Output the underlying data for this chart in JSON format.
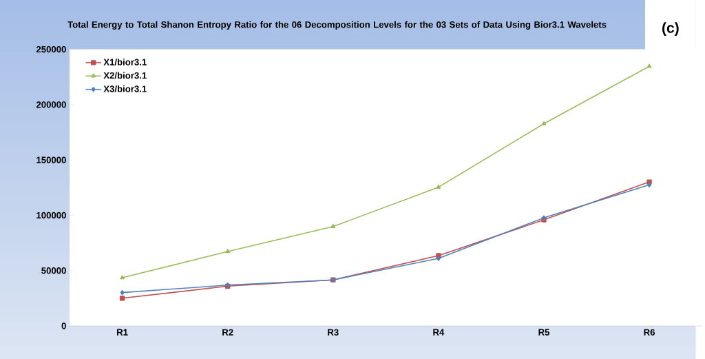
{
  "chart_data": {
    "type": "line",
    "title": "Total Energy to Total Shanon Entropy Ratio for the 06 Decomposition Levels for the 03 Sets of Data Using Bior3.1 Wavelets",
    "annotations": [
      "(c)"
    ],
    "categories": [
      "R1",
      "R2",
      "R3",
      "R4",
      "R5",
      "R6"
    ],
    "series": [
      {
        "name": "X1/bior3.1",
        "color": "#c0504d",
        "marker": "square",
        "values": [
          25000,
          35900,
          41600,
          63500,
          95900,
          130100
        ]
      },
      {
        "name": "X2/bior3.1",
        "color": "#9bbb59",
        "marker": "triangle",
        "values": [
          43600,
          67200,
          89800,
          125400,
          182800,
          234600
        ]
      },
      {
        "name": "X3/bior3.1",
        "color": "#4f81bd",
        "marker": "diamond",
        "values": [
          30100,
          36900,
          41600,
          61000,
          97700,
          127500
        ]
      }
    ],
    "ylim": [
      0,
      250000
    ],
    "yticks": [
      0,
      50000,
      100000,
      150000,
      200000,
      250000
    ],
    "grid": false,
    "legend": "top left",
    "line_style": "solid"
  }
}
